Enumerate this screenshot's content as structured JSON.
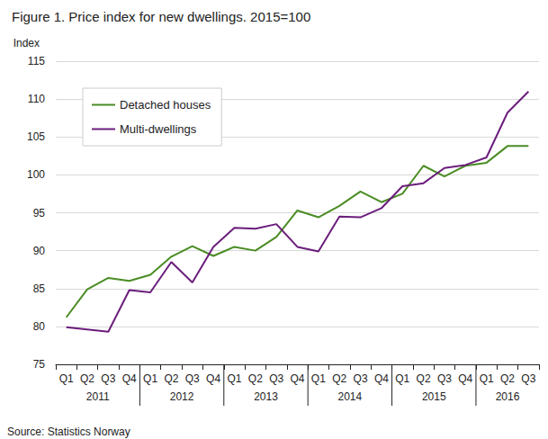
{
  "chart_data": {
    "type": "line",
    "title": "Figure 1. Price index for new dwellings. 2015=100",
    "y_label": "Index",
    "source": "Source: Statistics Norway",
    "categories": [
      "Q1",
      "Q2",
      "Q3",
      "Q4",
      "Q1",
      "Q2",
      "Q3",
      "Q4",
      "Q1",
      "Q2",
      "Q3",
      "Q4",
      "Q1",
      "Q2",
      "Q3",
      "Q4",
      "Q1",
      "Q2",
      "Q3",
      "Q4",
      "Q1",
      "Q2",
      "Q3"
    ],
    "year_groups": [
      {
        "label": "2011",
        "quarters": 4
      },
      {
        "label": "2012",
        "quarters": 4
      },
      {
        "label": "2013",
        "quarters": 4
      },
      {
        "label": "2014",
        "quarters": 4
      },
      {
        "label": "2015",
        "quarters": 4
      },
      {
        "label": "2016",
        "quarters": 3
      }
    ],
    "series": [
      {
        "name": "Detached houses",
        "color": "#4a8c23",
        "values": [
          81.2,
          84.9,
          86.4,
          86.0,
          86.8,
          89.2,
          90.6,
          89.3,
          90.5,
          90.0,
          91.8,
          95.3,
          94.4,
          95.9,
          97.8,
          96.4,
          97.5,
          101.2,
          99.8,
          101.2,
          101.6,
          103.8,
          103.8
        ]
      },
      {
        "name": "Multi-dwellings",
        "color": "#6b1d7c",
        "values": [
          79.9,
          79.6,
          79.3,
          84.8,
          84.5,
          88.5,
          85.8,
          90.5,
          93.0,
          92.9,
          93.5,
          90.5,
          89.9,
          94.5,
          94.4,
          95.6,
          98.5,
          98.9,
          100.9,
          101.3,
          102.3,
          108.2,
          111.0
        ]
      }
    ],
    "ylim": [
      75,
      115
    ],
    "yticks": [
      75,
      80,
      85,
      90,
      95,
      100,
      105,
      110,
      115
    ],
    "grid": true,
    "legend": "upper left"
  }
}
